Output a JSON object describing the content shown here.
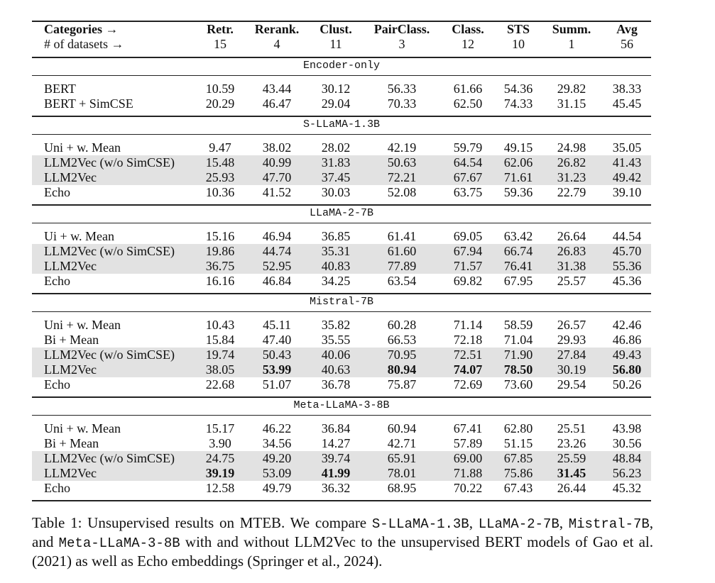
{
  "header": {
    "rows": [
      [
        "Categories →",
        "Retr.",
        "Rerank.",
        "Clust.",
        "PairClass.",
        "Class.",
        "STS",
        "Summ.",
        "Avg"
      ],
      [
        "# of datasets →",
        "15",
        "4",
        "11",
        "3",
        "12",
        "10",
        "1",
        "56"
      ]
    ]
  },
  "sections": [
    {
      "title": "Encoder-only",
      "rows": [
        {
          "cells": [
            "BERT",
            "10.59",
            "43.44",
            "30.12",
            "56.33",
            "61.66",
            "54.36",
            "29.82",
            "38.33"
          ]
        },
        {
          "cells": [
            "BERT + SimCSE",
            "20.29",
            "46.47",
            "29.04",
            "70.33",
            "62.50",
            "74.33",
            "31.15",
            "45.45"
          ]
        }
      ]
    },
    {
      "title": "S-LLaMA-1.3B",
      "rows": [
        {
          "cells": [
            "Uni + w. Mean",
            "9.47",
            "38.02",
            "28.02",
            "42.19",
            "59.79",
            "49.15",
            "24.98",
            "35.05"
          ]
        },
        {
          "cells": [
            "LLM2Vec (w/o SimCSE)",
            "15.48",
            "40.99",
            "31.83",
            "50.63",
            "64.54",
            "62.06",
            "26.82",
            "41.43"
          ],
          "shaded": true
        },
        {
          "cells": [
            "LLM2Vec",
            "25.93",
            "47.70",
            "37.45",
            "72.21",
            "67.67",
            "71.61",
            "31.23",
            "49.42"
          ],
          "shaded": true
        },
        {
          "cells": [
            "Echo",
            "10.36",
            "41.52",
            "30.03",
            "52.08",
            "63.75",
            "59.36",
            "22.79",
            "39.10"
          ]
        }
      ]
    },
    {
      "title": "LLaMA-2-7B",
      "rows": [
        {
          "cells": [
            "Ui + w. Mean",
            "15.16",
            "46.94",
            "36.85",
            "61.41",
            "69.05",
            "63.42",
            "26.64",
            "44.54"
          ]
        },
        {
          "cells": [
            "LLM2Vec (w/o SimCSE)",
            "19.86",
            "44.74",
            "35.31",
            "61.60",
            "67.94",
            "66.74",
            "26.83",
            "45.70"
          ],
          "shaded": true
        },
        {
          "cells": [
            "LLM2Vec",
            "36.75",
            "52.95",
            "40.83",
            "77.89",
            "71.57",
            "76.41",
            "31.38",
            "55.36"
          ],
          "shaded": true
        },
        {
          "cells": [
            "Echo",
            "16.16",
            "46.84",
            "34.25",
            "63.54",
            "69.82",
            "67.95",
            "25.57",
            "45.36"
          ]
        }
      ]
    },
    {
      "title": "Mistral-7B",
      "rows": [
        {
          "cells": [
            "Uni + w. Mean",
            "10.43",
            "45.11",
            "35.82",
            "60.28",
            "71.14",
            "58.59",
            "26.57",
            "42.46"
          ]
        },
        {
          "cells": [
            "Bi + Mean",
            "15.84",
            "47.40",
            "35.55",
            "66.53",
            "72.18",
            "71.04",
            "29.93",
            "46.86"
          ]
        },
        {
          "cells": [
            "LLM2Vec (w/o SimCSE)",
            "19.74",
            "50.43",
            "40.06",
            "70.95",
            "72.51",
            "71.90",
            "27.84",
            "49.43"
          ],
          "shaded": true
        },
        {
          "cells": [
            "LLM2Vec",
            "38.05",
            {
              "text": "53.99",
              "bold": true
            },
            "40.63",
            {
              "text": "80.94",
              "bold": true
            },
            {
              "text": "74.07",
              "bold": true
            },
            {
              "text": "78.50",
              "bold": true
            },
            "30.19",
            {
              "text": "56.80",
              "bold": true
            }
          ],
          "shaded": true
        },
        {
          "cells": [
            "Echo",
            "22.68",
            "51.07",
            "36.78",
            "75.87",
            "72.69",
            "73.60",
            "29.54",
            "50.26"
          ]
        }
      ]
    },
    {
      "title": "Meta-LLaMA-3-8B",
      "rows": [
        {
          "cells": [
            "Uni + w. Mean",
            "15.17",
            "46.22",
            "36.84",
            "60.94",
            "67.41",
            "62.80",
            "25.51",
            "43.98"
          ]
        },
        {
          "cells": [
            "Bi + Mean",
            "3.90",
            "34.56",
            "14.27",
            "42.71",
            "57.89",
            "51.15",
            "23.26",
            "30.56"
          ]
        },
        {
          "cells": [
            "LLM2Vec (w/o SimCSE)",
            "24.75",
            "49.20",
            "39.74",
            "65.91",
            "69.00",
            "67.85",
            "25.59",
            "48.84"
          ],
          "shaded": true
        },
        {
          "cells": [
            "LLM2Vec",
            {
              "text": "39.19",
              "bold": true
            },
            "53.09",
            {
              "text": "41.99",
              "bold": true
            },
            "78.01",
            "71.88",
            "75.86",
            {
              "text": "31.45",
              "bold": true
            },
            "56.23"
          ],
          "shaded": true
        },
        {
          "cells": [
            "Echo",
            "12.58",
            "49.79",
            "36.32",
            "68.95",
            "70.22",
            "67.43",
            "26.44",
            "45.32"
          ]
        }
      ]
    }
  ],
  "caption": [
    {
      "text": "Table 1:  Unsupervised results on MTEB. We compare "
    },
    {
      "text": "S-LLaMA-1.3B",
      "mono": true
    },
    {
      "text": ", "
    },
    {
      "text": "LLaMA-2-7B",
      "mono": true
    },
    {
      "text": ", "
    },
    {
      "text": "Mistral-7B",
      "mono": true
    },
    {
      "text": ", and "
    },
    {
      "text": "Meta-LLaMA-3-8B",
      "mono": true
    },
    {
      "text": " with and without LLM2Vec to the unsupervised BERT models of Gao et al. (2021) as well as Echo embeddings (Springer et al., 2024)."
    }
  ]
}
